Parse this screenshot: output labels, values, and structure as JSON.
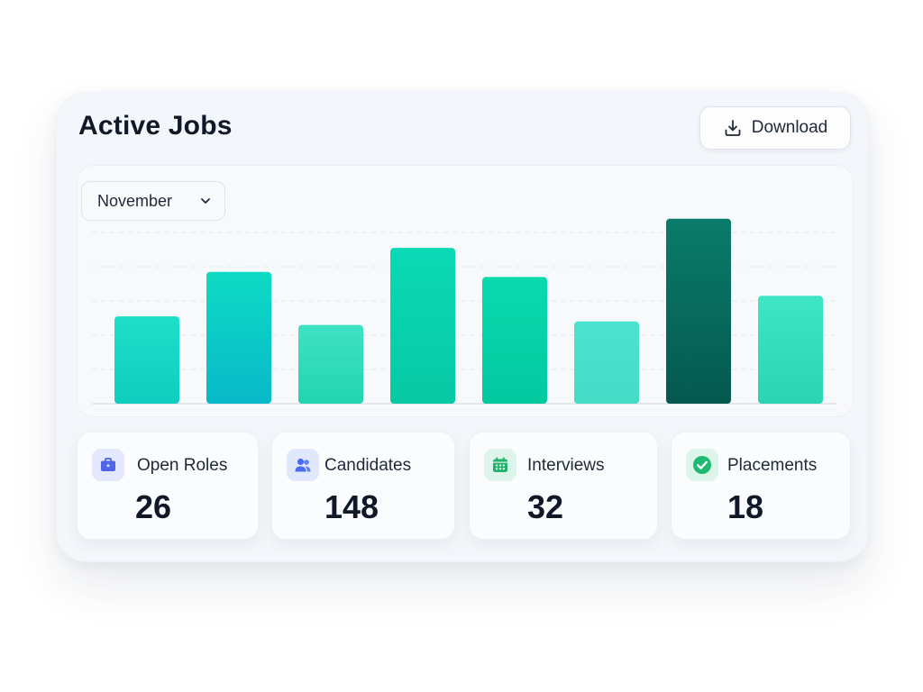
{
  "header": {
    "title": "Active Jobs",
    "download_label": "Download"
  },
  "filter": {
    "selected_month": "November"
  },
  "chart_data": {
    "type": "bar",
    "categories": [
      "",
      "",
      "",
      "",
      "",
      "",
      "",
      ""
    ],
    "values": [
      51,
      77,
      46,
      91,
      74,
      48,
      108,
      63
    ],
    "ylim": [
      0,
      120
    ],
    "grid": true,
    "colors": [
      [
        "#1edfc9",
        "#0fcdbf"
      ],
      [
        "#0edbc4",
        "#08b9c9"
      ],
      [
        "#3fe3c4",
        "#22d4b0"
      ],
      [
        "#0ad9b5",
        "#08c9a4"
      ],
      [
        "#0ad9ad",
        "#04c9a0"
      ],
      [
        "#4ae3d0",
        "#45dbc6"
      ],
      [
        "#0a7b6a",
        "#05594f"
      ],
      [
        "#3fe6c6",
        "#2ad4b2"
      ]
    ]
  },
  "stats": [
    {
      "label": "Open Roles",
      "value": "26",
      "icon": "briefcase-icon",
      "icon_bg": "#e3e8fc",
      "icon_color": "#4f64e6"
    },
    {
      "label": "Candidates",
      "value": "148",
      "icon": "users-icon",
      "icon_bg": "#e2e8fb",
      "icon_color": "#4a6df0"
    },
    {
      "label": "Interviews",
      "value": "32",
      "icon": "calendar-icon",
      "icon_bg": "#ddf5ea",
      "icon_color": "#22b26e"
    },
    {
      "label": "Placements",
      "value": "18",
      "icon": "check-circle-icon",
      "icon_bg": "#dcf5ea",
      "icon_color": "#1fba72"
    }
  ]
}
